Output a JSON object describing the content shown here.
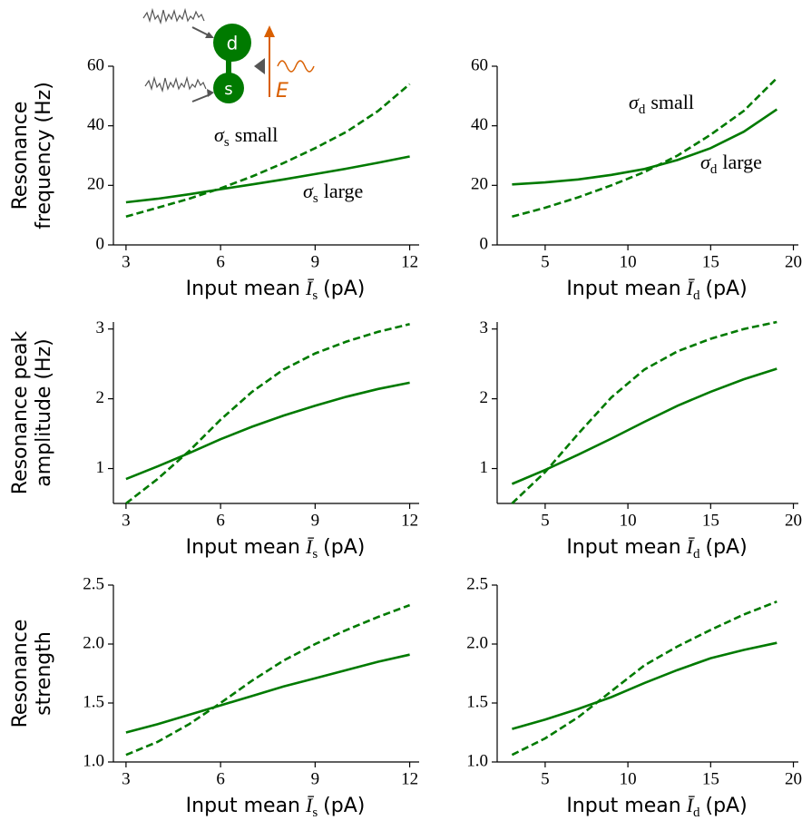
{
  "inset": {
    "labels": [
      "d",
      "s",
      "E"
    ]
  },
  "chart_data": [
    {
      "type": "line",
      "ylabel": [
        "Resonance",
        "frequency (Hz)"
      ],
      "xlabel": [
        "Input mean",
        "Ī",
        "s",
        "(pA)"
      ],
      "x": [
        3,
        4,
        5,
        6,
        7,
        8,
        9,
        10,
        11,
        12
      ],
      "xlim": [
        2.6,
        12.3
      ],
      "xticks": [
        3,
        6,
        9,
        12
      ],
      "ylim": [
        0,
        60
      ],
      "yticks": [
        0,
        20,
        40,
        60
      ],
      "series": [
        {
          "color": "#007a00",
          "dash": false,
          "values": [
            14.3,
            15.5,
            17,
            18.7,
            20.3,
            22,
            23.8,
            25.6,
            27.6,
            29.7
          ]
        },
        {
          "color": "#007a00",
          "dash": true,
          "values": [
            9.5,
            12.5,
            15.5,
            19,
            23,
            27.5,
            32.5,
            38,
            45,
            54
          ]
        }
      ],
      "annotations": [
        [
          "σ",
          "s",
          "small"
        ],
        [
          "σ",
          "s",
          "large"
        ]
      ]
    },
    {
      "type": "line",
      "xlabel": [
        "Input mean",
        "Ī",
        "d",
        "(pA)"
      ],
      "x": [
        3,
        5,
        7,
        9,
        11,
        13,
        15,
        17,
        19
      ],
      "xlim": [
        2.1,
        20.3
      ],
      "xticks": [
        5,
        10,
        15,
        20
      ],
      "ylim": [
        0,
        60
      ],
      "yticks": [
        0,
        20,
        40,
        60
      ],
      "series": [
        {
          "color": "#007a00",
          "dash": false,
          "values": [
            20.3,
            21,
            22,
            23.5,
            25.5,
            28.5,
            32.5,
            38,
            45.5
          ]
        },
        {
          "color": "#007a00",
          "dash": true,
          "values": [
            9.5,
            12.5,
            16,
            20,
            24.5,
            30,
            37,
            45,
            56
          ]
        }
      ],
      "annotations": [
        [
          "σ",
          "d",
          "small"
        ],
        [
          "σ",
          "d",
          "large"
        ]
      ]
    },
    {
      "type": "line",
      "ylabel": [
        "Resonance peak",
        "amplitude (Hz)"
      ],
      "xlabel": [
        "Input mean",
        "Ī",
        "s",
        "(pA)"
      ],
      "x": [
        3,
        4,
        5,
        6,
        7,
        8,
        9,
        10,
        11,
        12
      ],
      "xlim": [
        2.6,
        12.3
      ],
      "xticks": [
        3,
        6,
        9,
        12
      ],
      "ylim": [
        0.5,
        3.1
      ],
      "yticks": [
        1,
        2,
        3
      ],
      "series": [
        {
          "color": "#007a00",
          "dash": false,
          "values": [
            0.85,
            1.03,
            1.22,
            1.42,
            1.6,
            1.76,
            1.9,
            2.03,
            2.14,
            2.23
          ]
        },
        {
          "color": "#007a00",
          "dash": true,
          "values": [
            0.5,
            0.85,
            1.25,
            1.7,
            2.1,
            2.42,
            2.65,
            2.82,
            2.96,
            3.07
          ]
        }
      ]
    },
    {
      "type": "line",
      "xlabel": [
        "Input mean",
        "Ī",
        "d",
        "(pA)"
      ],
      "x": [
        3,
        5,
        7,
        9,
        11,
        13,
        15,
        17,
        19
      ],
      "xlim": [
        2.1,
        20.3
      ],
      "xticks": [
        5,
        10,
        15,
        20
      ],
      "ylim": [
        0.5,
        3.1
      ],
      "yticks": [
        1,
        2,
        3
      ],
      "series": [
        {
          "color": "#007a00",
          "dash": false,
          "values": [
            0.78,
            0.98,
            1.2,
            1.43,
            1.67,
            1.9,
            2.1,
            2.28,
            2.43
          ]
        },
        {
          "color": "#007a00",
          "dash": true,
          "values": [
            0.5,
            0.95,
            1.5,
            2.02,
            2.42,
            2.68,
            2.86,
            3.0,
            3.1
          ]
        }
      ]
    },
    {
      "type": "line",
      "ylabel": [
        "Resonance",
        "strength"
      ],
      "xlabel": [
        "Input mean",
        "Ī",
        "s",
        "(pA)"
      ],
      "x": [
        3,
        4,
        5,
        6,
        7,
        8,
        9,
        10,
        11,
        12
      ],
      "xlim": [
        2.6,
        12.3
      ],
      "xticks": [
        3,
        6,
        9,
        12
      ],
      "ylim": [
        1,
        2.5
      ],
      "yticks": [
        {
          "value": 1,
          "label": "1.0"
        },
        1.5,
        {
          "value": 2,
          "label": "2.0"
        },
        2.5
      ],
      "series": [
        {
          "color": "#007a00",
          "dash": false,
          "values": [
            1.25,
            1.32,
            1.4,
            1.48,
            1.56,
            1.64,
            1.71,
            1.78,
            1.85,
            1.91
          ]
        },
        {
          "color": "#007a00",
          "dash": true,
          "values": [
            1.06,
            1.17,
            1.32,
            1.5,
            1.69,
            1.86,
            2.0,
            2.12,
            2.23,
            2.33
          ]
        }
      ]
    },
    {
      "type": "line",
      "xlabel": [
        "Input mean",
        "Ī",
        "d",
        "(pA)"
      ],
      "x": [
        3,
        5,
        7,
        9,
        11,
        13,
        15,
        17,
        19
      ],
      "xlim": [
        2.1,
        20.3
      ],
      "xticks": [
        5,
        10,
        15,
        20
      ],
      "ylim": [
        1,
        2.5
      ],
      "yticks": [
        {
          "value": 1,
          "label": "1.0"
        },
        1.5,
        {
          "value": 2,
          "label": "2.0"
        },
        2.5
      ],
      "series": [
        {
          "color": "#007a00",
          "dash": false,
          "values": [
            1.28,
            1.36,
            1.45,
            1.55,
            1.67,
            1.78,
            1.88,
            1.95,
            2.01
          ]
        },
        {
          "color": "#007a00",
          "dash": true,
          "values": [
            1.06,
            1.2,
            1.38,
            1.6,
            1.82,
            1.98,
            2.12,
            2.25,
            2.36
          ]
        }
      ]
    }
  ]
}
